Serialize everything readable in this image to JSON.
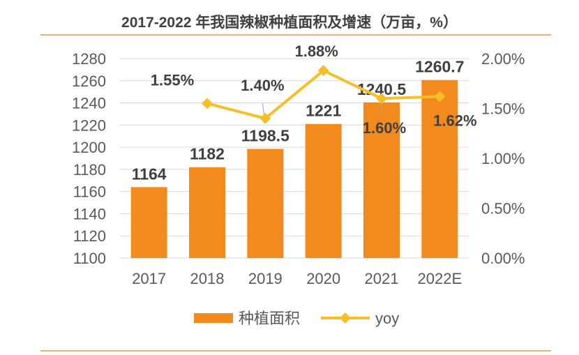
{
  "chart_data": {
    "type": "bar+line",
    "title": "2017-2022 年我国辣椒种植面积及增速（万亩，%）",
    "categories": [
      "2017",
      "2018",
      "2019",
      "2020",
      "2021",
      "2022E"
    ],
    "series": [
      {
        "name": "种植面积",
        "type": "bar",
        "axis": "left",
        "values": [
          1164,
          1182,
          1198.5,
          1221,
          1240.5,
          1260.7
        ],
        "labels": [
          "1164",
          "1182",
          "1198.5",
          "1221",
          "1240.5",
          "1260.7"
        ],
        "color": "#f28a1e"
      },
      {
        "name": "yoy",
        "type": "line",
        "axis": "right",
        "values": [
          null,
          1.55,
          1.4,
          1.88,
          1.6,
          1.62
        ],
        "labels": [
          "",
          "1.55%",
          "1.40%",
          "1.88%",
          "1.60%",
          "1.62%"
        ],
        "color": "#f5bf2a"
      }
    ],
    "left_axis": {
      "range": [
        1100,
        1280
      ],
      "ticks": [
        "1100",
        "1120",
        "1140",
        "1160",
        "1180",
        "1200",
        "1220",
        "1240",
        "1260",
        "1280"
      ]
    },
    "right_axis": {
      "range": [
        0,
        2
      ],
      "ticks": [
        "0.00%",
        "0.50%",
        "1.00%",
        "1.50%",
        "2.00%"
      ]
    },
    "grid": true,
    "legend": "bottom"
  }
}
